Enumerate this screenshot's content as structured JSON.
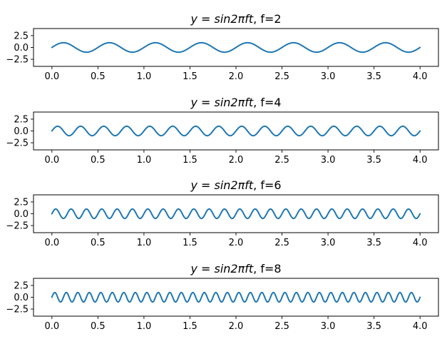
{
  "chart_data": [
    {
      "type": "line",
      "title": "y = sin2πft, f=2",
      "title_expr": "y = sin2πft",
      "title_suffix": ", f=2",
      "frequency": 2,
      "function": "sin(2*pi*f*t)",
      "x_range": [
        0,
        4
      ],
      "xlim": [
        -0.2,
        4.2
      ],
      "ylim": [
        -4,
        4
      ],
      "x_ticks": [
        0.0,
        0.5,
        1.0,
        1.5,
        2.0,
        2.5,
        3.0,
        3.5,
        4.0
      ],
      "x_tick_labels": [
        "0.0",
        "0.5",
        "1.0",
        "1.5",
        "2.0",
        "2.5",
        "3.0",
        "3.5",
        "4.0"
      ],
      "y_ticks": [
        2.5,
        0.0,
        -2.5
      ],
      "y_tick_labels": [
        "2.5",
        "0.0",
        "−2.5"
      ],
      "series": [
        {
          "color": "#1f77b4"
        }
      ]
    },
    {
      "type": "line",
      "title": "y = sin2πft, f=4",
      "title_expr": "y = sin2πft",
      "title_suffix": ", f=4",
      "frequency": 4,
      "function": "sin(2*pi*f*t)",
      "x_range": [
        0,
        4
      ],
      "xlim": [
        -0.2,
        4.2
      ],
      "ylim": [
        -4,
        4
      ],
      "x_ticks": [
        0.0,
        0.5,
        1.0,
        1.5,
        2.0,
        2.5,
        3.0,
        3.5,
        4.0
      ],
      "x_tick_labels": [
        "0.0",
        "0.5",
        "1.0",
        "1.5",
        "2.0",
        "2.5",
        "3.0",
        "3.5",
        "4.0"
      ],
      "y_ticks": [
        2.5,
        0.0,
        -2.5
      ],
      "y_tick_labels": [
        "2.5",
        "0.0",
        "−2.5"
      ],
      "series": [
        {
          "color": "#1f77b4"
        }
      ]
    },
    {
      "type": "line",
      "title": "y = sin2πft, f=6",
      "title_expr": "y = sin2πft",
      "title_suffix": ", f=6",
      "frequency": 6,
      "function": "sin(2*pi*f*t)",
      "x_range": [
        0,
        4
      ],
      "xlim": [
        -0.2,
        4.2
      ],
      "ylim": [
        -4,
        4
      ],
      "x_ticks": [
        0.0,
        0.5,
        1.0,
        1.5,
        2.0,
        2.5,
        3.0,
        3.5,
        4.0
      ],
      "x_tick_labels": [
        "0.0",
        "0.5",
        "1.0",
        "1.5",
        "2.0",
        "2.5",
        "3.0",
        "3.5",
        "4.0"
      ],
      "y_ticks": [
        2.5,
        0.0,
        -2.5
      ],
      "y_tick_labels": [
        "2.5",
        "0.0",
        "−2.5"
      ],
      "series": [
        {
          "color": "#1f77b4"
        }
      ]
    },
    {
      "type": "line",
      "title": "y = sin2πft, f=8",
      "title_expr": "y = sin2πft",
      "title_suffix": ", f=8",
      "frequency": 8,
      "function": "sin(2*pi*f*t)",
      "x_range": [
        0,
        4
      ],
      "xlim": [
        -0.2,
        4.2
      ],
      "ylim": [
        -4,
        4
      ],
      "x_ticks": [
        0.0,
        0.5,
        1.0,
        1.5,
        2.0,
        2.5,
        3.0,
        3.5,
        4.0
      ],
      "x_tick_labels": [
        "0.0",
        "0.5",
        "1.0",
        "1.5",
        "2.0",
        "2.5",
        "3.0",
        "3.5",
        "4.0"
      ],
      "y_ticks": [
        2.5,
        0.0,
        -2.5
      ],
      "y_tick_labels": [
        "2.5",
        "0.0",
        "−2.5"
      ],
      "series": [
        {
          "color": "#1f77b4"
        }
      ]
    }
  ]
}
